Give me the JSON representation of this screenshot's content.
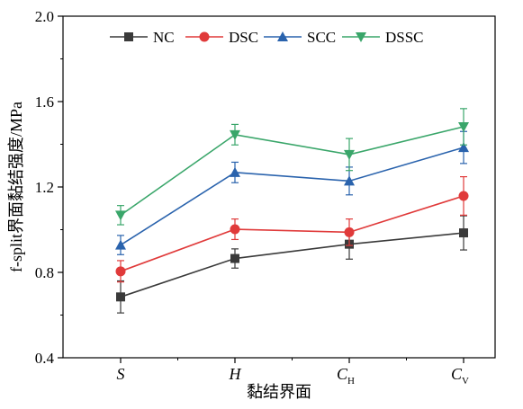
{
  "chart_data": {
    "type": "line",
    "categories": [
      {
        "main": "S",
        "sub": ""
      },
      {
        "main": "H",
        "sub": ""
      },
      {
        "main": "C",
        "sub": "H"
      },
      {
        "main": "C",
        "sub": "V"
      }
    ],
    "xlabel": "黏结界面",
    "ylabel": "f-split界面黏结强度/MPa",
    "ylim": [
      0.4,
      2.0
    ],
    "yticks": [
      "0.4",
      "0.8",
      "1.2",
      "1.6",
      "2.0"
    ],
    "legend_position": "top",
    "grid": false,
    "series": [
      {
        "name": "NC",
        "color": "#3a3a3a",
        "marker": "square",
        "values": [
          0.685,
          0.865,
          0.932,
          0.985
        ],
        "errors": [
          0.075,
          0.045,
          0.07,
          0.08
        ]
      },
      {
        "name": "DSC",
        "color": "#e03a3a",
        "marker": "circle",
        "values": [
          0.805,
          1.002,
          0.988,
          1.158
        ],
        "errors": [
          0.05,
          0.048,
          0.062,
          0.09
        ]
      },
      {
        "name": "SCC",
        "color": "#2a63ad",
        "marker": "triangle-up",
        "values": [
          0.928,
          1.268,
          1.228,
          1.385
        ],
        "errors": [
          0.045,
          0.048,
          0.065,
          0.075
        ]
      },
      {
        "name": "DSSC",
        "color": "#3aa66a",
        "marker": "triangle-down",
        "values": [
          1.068,
          1.445,
          1.352,
          1.482
        ],
        "errors": [
          0.045,
          0.048,
          0.075,
          0.085
        ]
      }
    ]
  }
}
